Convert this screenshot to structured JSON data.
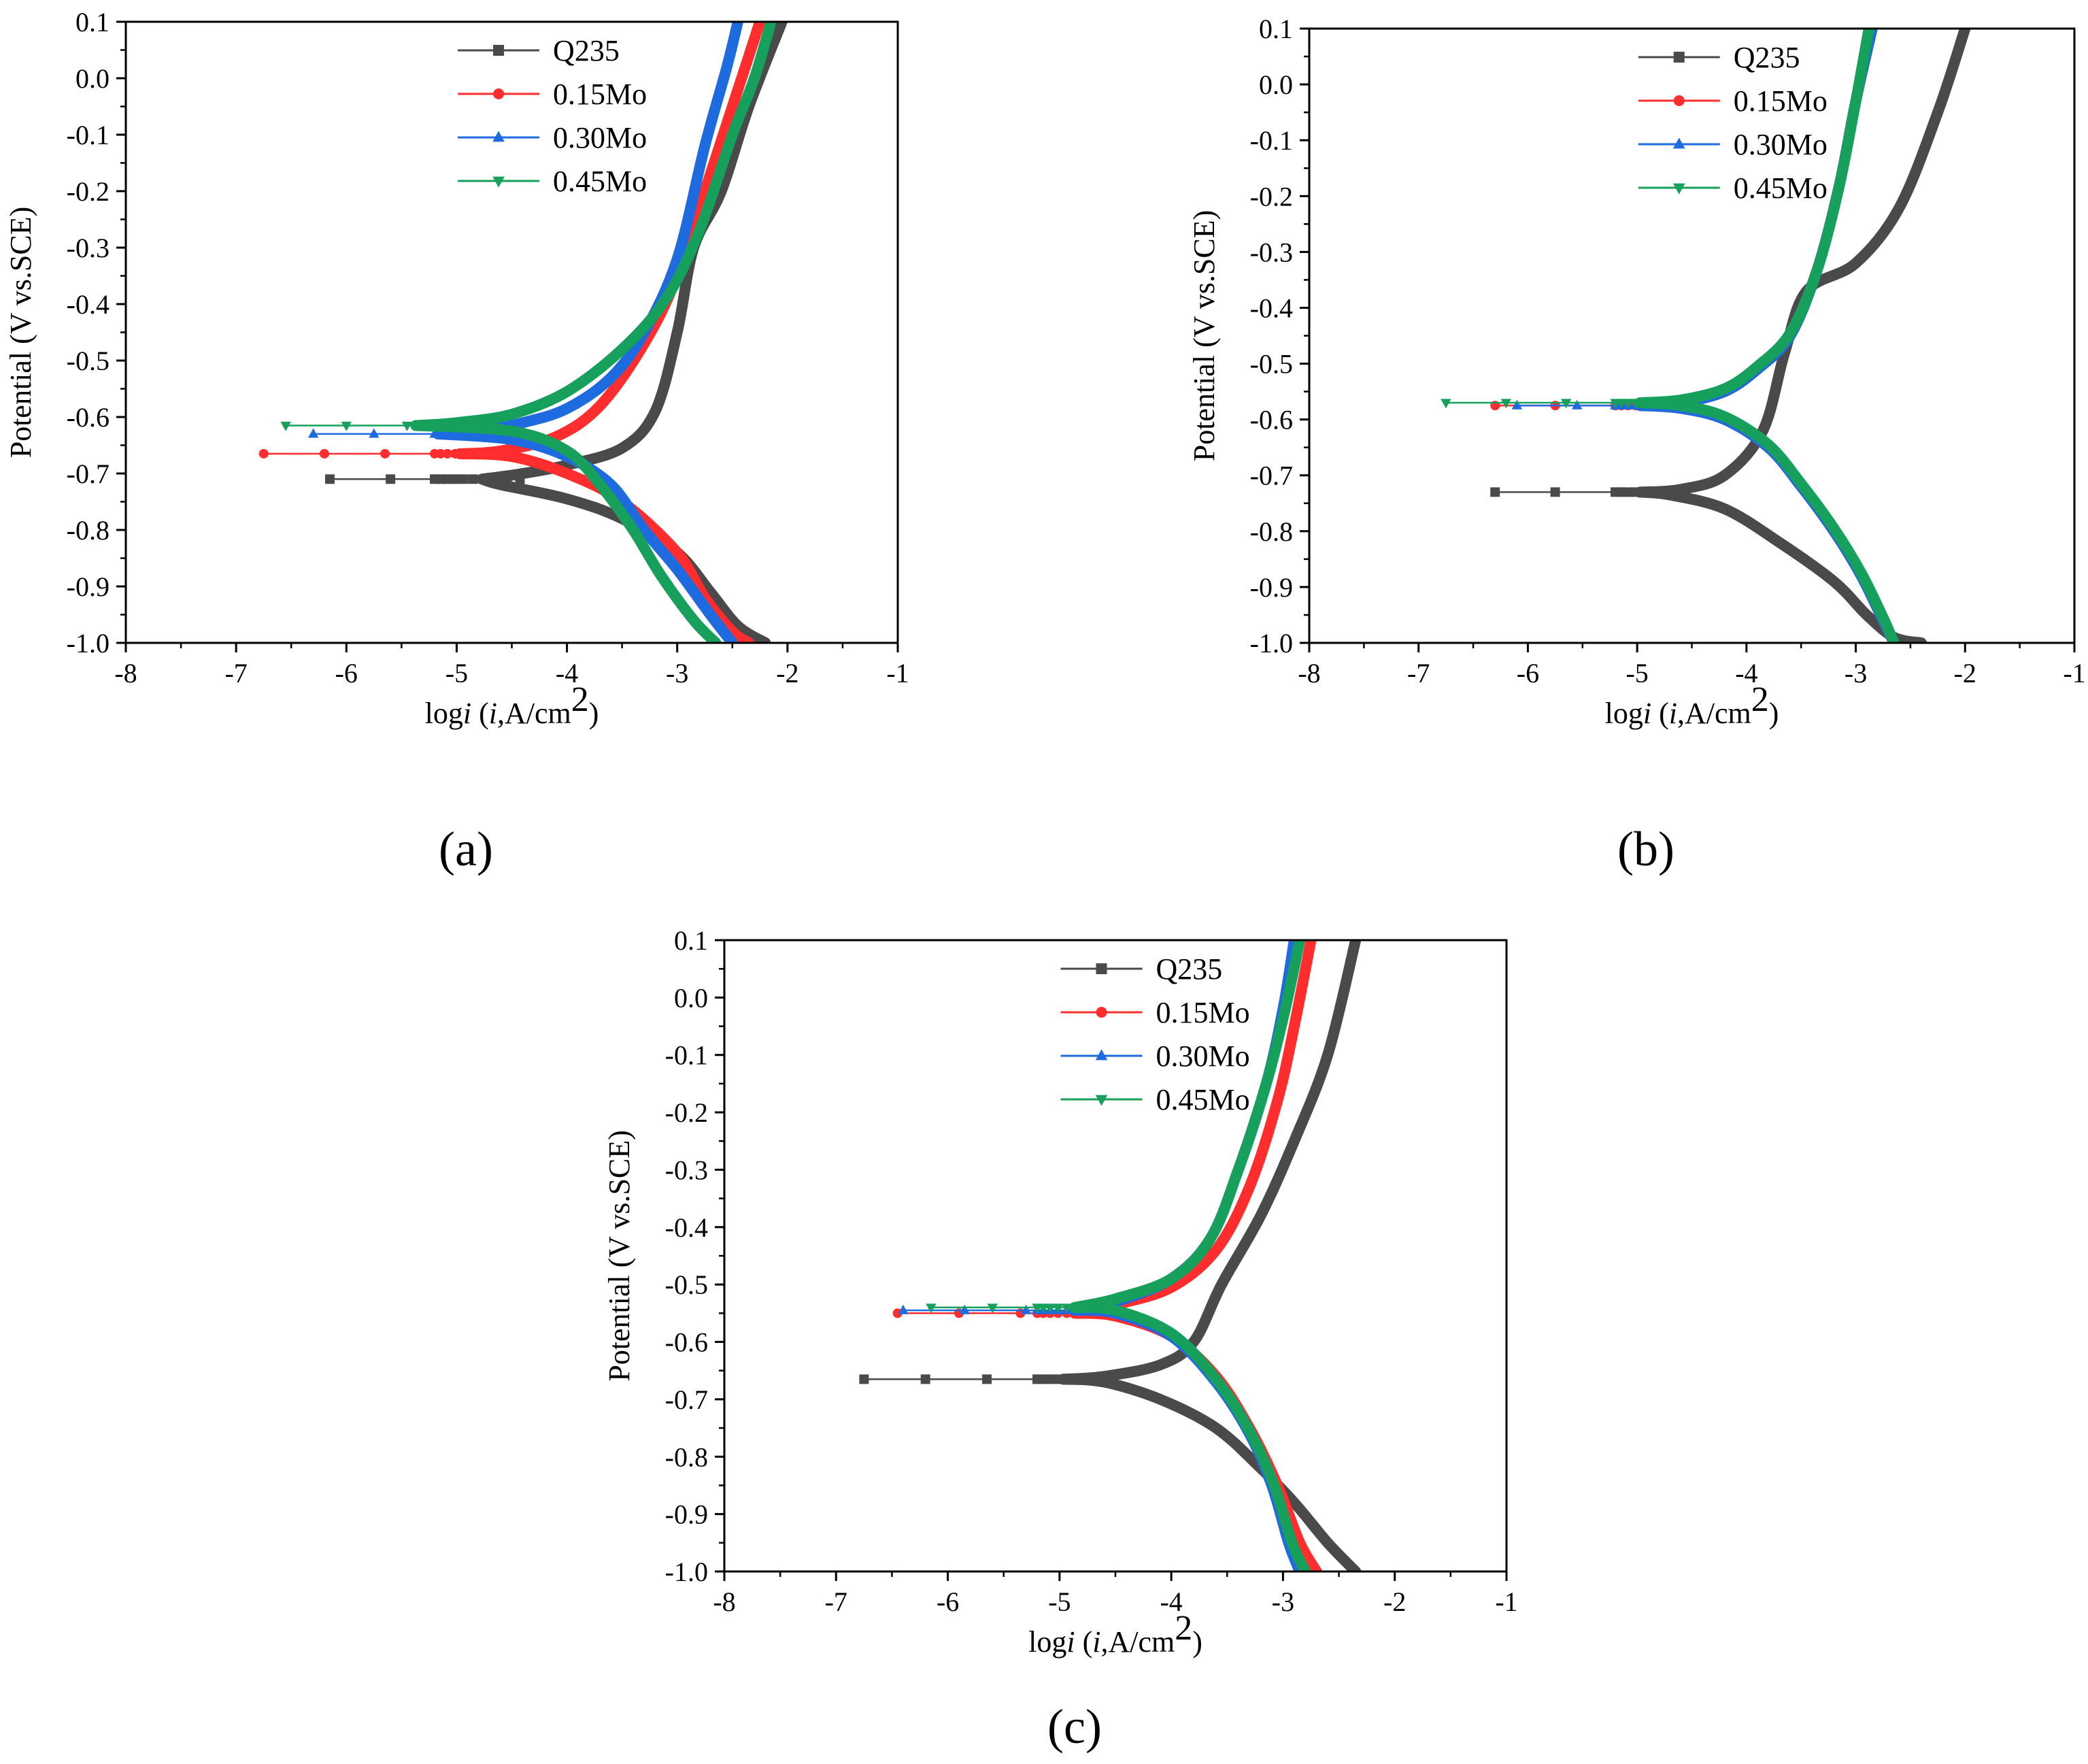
{
  "figure": {
    "panel_labels": [
      "(a)",
      "(b)",
      "(c)"
    ]
  },
  "chart_data": [
    {
      "panel": "a",
      "type": "line",
      "title": "",
      "xlabel": "logi (i,A/cm2)",
      "xlabel_parts": {
        "pre": "log",
        "italic1": "i",
        "mid": " (",
        "italic2": "i",
        "post": ",A/cm",
        "sup": "2",
        "close": ")"
      },
      "ylabel": "Potential (V vs.SCE)",
      "xlim": [
        -8,
        -1
      ],
      "ylim": [
        -1.0,
        0.1
      ],
      "xticks": [
        "-8",
        "-7",
        "-6",
        "-5",
        "-4",
        "-3",
        "-2",
        "-1"
      ],
      "yticks": [
        "0.1",
        "0.0",
        "-0.1",
        "-0.2",
        "-0.3",
        "-0.4",
        "-0.5",
        "-0.6",
        "-0.7",
        "-0.8",
        "-0.9",
        "-1.0"
      ],
      "legend_position": "top-center",
      "series": [
        {
          "name": "Q235",
          "color": "#4a4a4a",
          "marker": "square",
          "ecorr": -0.71,
          "x_start": -6.15,
          "anodic": [
            [
              -4.4,
              -0.7
            ],
            [
              -4.0,
              -0.685
            ],
            [
              -3.5,
              -0.655
            ],
            [
              -3.2,
              -0.59
            ],
            [
              -3.0,
              -0.45
            ],
            [
              -2.85,
              -0.3
            ],
            [
              -2.6,
              -0.2
            ],
            [
              -2.35,
              -0.05
            ],
            [
              -2.05,
              0.1
            ]
          ],
          "cathodic": [
            [
              -4.6,
              -0.72
            ],
            [
              -4.0,
              -0.745
            ],
            [
              -3.5,
              -0.78
            ],
            [
              -3.0,
              -0.84
            ],
            [
              -2.7,
              -0.91
            ],
            [
              -2.45,
              -0.97
            ],
            [
              -2.2,
              -1.0
            ]
          ]
        },
        {
          "name": "0.15Mo",
          "color": "#ff2d2d",
          "marker": "circle",
          "ecorr": -0.665,
          "x_start": -6.75,
          "anodic": [
            [
              -4.6,
              -0.66
            ],
            [
              -4.1,
              -0.635
            ],
            [
              -3.7,
              -0.58
            ],
            [
              -3.3,
              -0.47
            ],
            [
              -3.0,
              -0.35
            ],
            [
              -2.7,
              -0.17
            ],
            [
              -2.45,
              -0.02
            ],
            [
              -2.25,
              0.1
            ]
          ],
          "cathodic": [
            [
              -4.5,
              -0.67
            ],
            [
              -4.0,
              -0.7
            ],
            [
              -3.5,
              -0.75
            ],
            [
              -3.0,
              -0.84
            ],
            [
              -2.75,
              -0.92
            ],
            [
              -2.5,
              -0.98
            ],
            [
              -2.35,
              -1.0
            ]
          ]
        },
        {
          "name": "0.30Mo",
          "color": "#1e6be0",
          "marker": "triangle-up",
          "ecorr": -0.63,
          "x_start": -6.3,
          "anodic": [
            [
              -4.8,
              -0.625
            ],
            [
              -4.4,
              -0.61
            ],
            [
              -4.0,
              -0.585
            ],
            [
              -3.6,
              -0.53
            ],
            [
              -3.3,
              -0.45
            ],
            [
              -3.0,
              -0.32
            ],
            [
              -2.75,
              -0.12
            ],
            [
              -2.55,
              0.02
            ],
            [
              -2.45,
              0.1
            ]
          ],
          "cathodic": [
            [
              -4.5,
              -0.64
            ],
            [
              -4.0,
              -0.67
            ],
            [
              -3.6,
              -0.72
            ],
            [
              -3.3,
              -0.8
            ],
            [
              -3.0,
              -0.87
            ],
            [
              -2.7,
              -0.95
            ],
            [
              -2.5,
              -1.0
            ]
          ]
        },
        {
          "name": "0.45Mo",
          "color": "#16a05c",
          "marker": "triangle-down",
          "ecorr": -0.615,
          "x_start": -6.55,
          "anodic": [
            [
              -5.0,
              -0.61
            ],
            [
              -4.5,
              -0.595
            ],
            [
              -4.0,
              -0.555
            ],
            [
              -3.5,
              -0.48
            ],
            [
              -3.1,
              -0.39
            ],
            [
              -2.8,
              -0.27
            ],
            [
              -2.5,
              -0.1
            ],
            [
              -2.3,
              0.0
            ],
            [
              -2.15,
              0.1
            ]
          ],
          "cathodic": [
            [
              -4.5,
              -0.625
            ],
            [
              -4.0,
              -0.66
            ],
            [
              -3.7,
              -0.72
            ],
            [
              -3.4,
              -0.8
            ],
            [
              -3.15,
              -0.88
            ],
            [
              -2.85,
              -0.96
            ],
            [
              -2.65,
              -1.0
            ]
          ]
        }
      ]
    },
    {
      "panel": "b",
      "type": "line",
      "title": "",
      "xlabel": "logi (i,A/cm2)",
      "xlabel_parts": {
        "pre": "log",
        "italic1": "i",
        "mid": " (",
        "italic2": "i",
        "post": ",A/cm",
        "sup": "2",
        "close": ")"
      },
      "ylabel": "Potential (V vs.SCE)",
      "xlim": [
        -8,
        -1
      ],
      "ylim": [
        -1.0,
        0.1
      ],
      "xticks": [
        "-8",
        "-7",
        "-6",
        "-5",
        "-4",
        "-3",
        "-2",
        "-1"
      ],
      "yticks": [
        "0.1",
        "0.0",
        "-0.1",
        "-0.2",
        "-0.3",
        "-0.4",
        "-0.5",
        "-0.6",
        "-0.7",
        "-0.8",
        "-0.9",
        "-1.0"
      ],
      "legend_position": "top-center",
      "series": [
        {
          "name": "Q235",
          "color": "#4a4a4a",
          "marker": "square",
          "ecorr": -0.73,
          "x_start": -6.3,
          "anodic": [
            [
              -4.6,
              -0.725
            ],
            [
              -4.2,
              -0.7
            ],
            [
              -3.85,
              -0.62
            ],
            [
              -3.65,
              -0.48
            ],
            [
              -3.45,
              -0.37
            ],
            [
              -3.0,
              -0.32
            ],
            [
              -2.6,
              -0.22
            ],
            [
              -2.25,
              -0.05
            ],
            [
              -2.0,
              0.1
            ]
          ],
          "cathodic": [
            [
              -4.7,
              -0.735
            ],
            [
              -4.2,
              -0.76
            ],
            [
              -3.7,
              -0.82
            ],
            [
              -3.2,
              -0.89
            ],
            [
              -2.9,
              -0.95
            ],
            [
              -2.65,
              -0.99
            ],
            [
              -2.4,
              -1.0
            ]
          ]
        },
        {
          "name": "0.15Mo",
          "color": "#ff2d2d",
          "marker": "circle",
          "ecorr": -0.575,
          "x_start": -6.3,
          "anodic": [
            [
              -4.6,
              -0.57
            ],
            [
              -4.2,
              -0.55
            ],
            [
              -3.9,
              -0.51
            ],
            [
              -3.6,
              -0.45
            ],
            [
              -3.35,
              -0.33
            ],
            [
              -3.15,
              -0.18
            ],
            [
              -3.0,
              -0.03
            ],
            [
              -2.85,
              0.1
            ]
          ],
          "cathodic": [
            [
              -4.6,
              -0.58
            ],
            [
              -4.2,
              -0.6
            ],
            [
              -3.8,
              -0.65
            ],
            [
              -3.5,
              -0.72
            ],
            [
              -3.2,
              -0.8
            ],
            [
              -2.95,
              -0.88
            ],
            [
              -2.75,
              -0.96
            ],
            [
              -2.65,
              -1.0
            ]
          ]
        },
        {
          "name": "0.30Mo",
          "color": "#1e6be0",
          "marker": "triangle-up",
          "ecorr": -0.575,
          "x_start": -6.1,
          "anodic": [
            [
              -4.6,
              -0.57
            ],
            [
              -4.2,
              -0.55
            ],
            [
              -3.9,
              -0.51
            ],
            [
              -3.6,
              -0.45
            ],
            [
              -3.35,
              -0.33
            ],
            [
              -3.15,
              -0.18
            ],
            [
              -3.0,
              -0.03
            ],
            [
              -2.85,
              0.1
            ]
          ],
          "cathodic": [
            [
              -4.6,
              -0.58
            ],
            [
              -4.2,
              -0.6
            ],
            [
              -3.8,
              -0.65
            ],
            [
              -3.5,
              -0.72
            ],
            [
              -3.2,
              -0.8
            ],
            [
              -2.95,
              -0.88
            ],
            [
              -2.75,
              -0.96
            ],
            [
              -2.65,
              -1.0
            ]
          ]
        },
        {
          "name": "0.45Mo",
          "color": "#16a05c",
          "marker": "triangle-down",
          "ecorr": -0.57,
          "x_start": -6.75,
          "anodic": [
            [
              -4.6,
              -0.565
            ],
            [
              -4.2,
              -0.545
            ],
            [
              -3.9,
              -0.505
            ],
            [
              -3.6,
              -0.445
            ],
            [
              -3.35,
              -0.33
            ],
            [
              -3.15,
              -0.18
            ],
            [
              -3.0,
              -0.03
            ],
            [
              -2.88,
              0.1
            ]
          ],
          "cathodic": [
            [
              -4.6,
              -0.575
            ],
            [
              -4.2,
              -0.595
            ],
            [
              -3.8,
              -0.645
            ],
            [
              -3.5,
              -0.715
            ],
            [
              -3.2,
              -0.795
            ],
            [
              -2.95,
              -0.875
            ],
            [
              -2.75,
              -0.955
            ],
            [
              -2.65,
              -1.0
            ]
          ]
        }
      ]
    },
    {
      "panel": "c",
      "type": "line",
      "title": "",
      "xlabel": "logi (i,A/cm2)",
      "xlabel_parts": {
        "pre": "log",
        "italic1": "i",
        "mid": " (",
        "italic2": "i",
        "post": ",A/cm",
        "sup": "2",
        "close": ")"
      },
      "ylabel": "Potential (V vs.SCE)",
      "xlim": [
        -8,
        -1
      ],
      "ylim": [
        -1.0,
        0.1
      ],
      "xticks": [
        "-8",
        "-7",
        "-6",
        "-5",
        "-4",
        "-3",
        "-2",
        "-1"
      ],
      "yticks": [
        "0.1",
        "0.0",
        "-0.1",
        "-0.2",
        "-0.3",
        "-0.4",
        "-0.5",
        "-0.6",
        "-0.7",
        "-0.8",
        "-0.9",
        "-1.0"
      ],
      "legend_position": "top-center",
      "series": [
        {
          "name": "Q235",
          "color": "#4a4a4a",
          "marker": "square",
          "ecorr": -0.665,
          "x_start": -6.75,
          "anodic": [
            [
              -4.6,
              -0.66
            ],
            [
              -4.1,
              -0.64
            ],
            [
              -3.8,
              -0.6
            ],
            [
              -3.55,
              -0.5
            ],
            [
              -3.2,
              -0.38
            ],
            [
              -2.9,
              -0.25
            ],
            [
              -2.6,
              -0.1
            ],
            [
              -2.35,
              0.1
            ]
          ],
          "cathodic": [
            [
              -4.6,
              -0.67
            ],
            [
              -4.1,
              -0.7
            ],
            [
              -3.6,
              -0.75
            ],
            [
              -3.2,
              -0.82
            ],
            [
              -2.9,
              -0.88
            ],
            [
              -2.6,
              -0.95
            ],
            [
              -2.35,
              -1.0
            ]
          ]
        },
        {
          "name": "0.15Mo",
          "color": "#ff2d2d",
          "marker": "circle",
          "ecorr": -0.55,
          "x_start": -6.45,
          "anodic": [
            [
              -4.5,
              -0.535
            ],
            [
              -4.0,
              -0.505
            ],
            [
              -3.6,
              -0.44
            ],
            [
              -3.3,
              -0.33
            ],
            [
              -3.05,
              -0.18
            ],
            [
              -2.9,
              -0.05
            ],
            [
              -2.75,
              0.1
            ]
          ],
          "cathodic": [
            [
              -4.5,
              -0.555
            ],
            [
              -4.0,
              -0.59
            ],
            [
              -3.6,
              -0.66
            ],
            [
              -3.3,
              -0.75
            ],
            [
              -3.05,
              -0.85
            ],
            [
              -2.85,
              -0.95
            ],
            [
              -2.7,
              -1.0
            ]
          ]
        },
        {
          "name": "0.30Mo",
          "color": "#1e6be0",
          "marker": "triangle-up",
          "ecorr": -0.545,
          "x_start": -6.4,
          "anodic": [
            [
              -4.5,
              -0.53
            ],
            [
              -4.0,
              -0.49
            ],
            [
              -3.65,
              -0.42
            ],
            [
              -3.4,
              -0.3
            ],
            [
              -3.15,
              -0.15
            ],
            [
              -3.0,
              -0.02
            ],
            [
              -2.9,
              0.1
            ]
          ],
          "cathodic": [
            [
              -4.5,
              -0.55
            ],
            [
              -4.0,
              -0.59
            ],
            [
              -3.6,
              -0.67
            ],
            [
              -3.3,
              -0.76
            ],
            [
              -3.1,
              -0.85
            ],
            [
              -2.95,
              -0.95
            ],
            [
              -2.85,
              -1.0
            ]
          ]
        },
        {
          "name": "0.45Mo",
          "color": "#16a05c",
          "marker": "triangle-down",
          "ecorr": -0.54,
          "x_start": -6.15,
          "anodic": [
            [
              -4.5,
              -0.525
            ],
            [
              -4.0,
              -0.49
            ],
            [
              -3.65,
              -0.42
            ],
            [
              -3.4,
              -0.3
            ],
            [
              -3.15,
              -0.15
            ],
            [
              -2.98,
              -0.02
            ],
            [
              -2.85,
              0.1
            ]
          ],
          "cathodic": [
            [
              -4.5,
              -0.545
            ],
            [
              -4.0,
              -0.585
            ],
            [
              -3.6,
              -0.665
            ],
            [
              -3.3,
              -0.755
            ],
            [
              -3.08,
              -0.85
            ],
            [
              -2.92,
              -0.95
            ],
            [
              -2.8,
              -1.0
            ]
          ]
        }
      ]
    }
  ]
}
